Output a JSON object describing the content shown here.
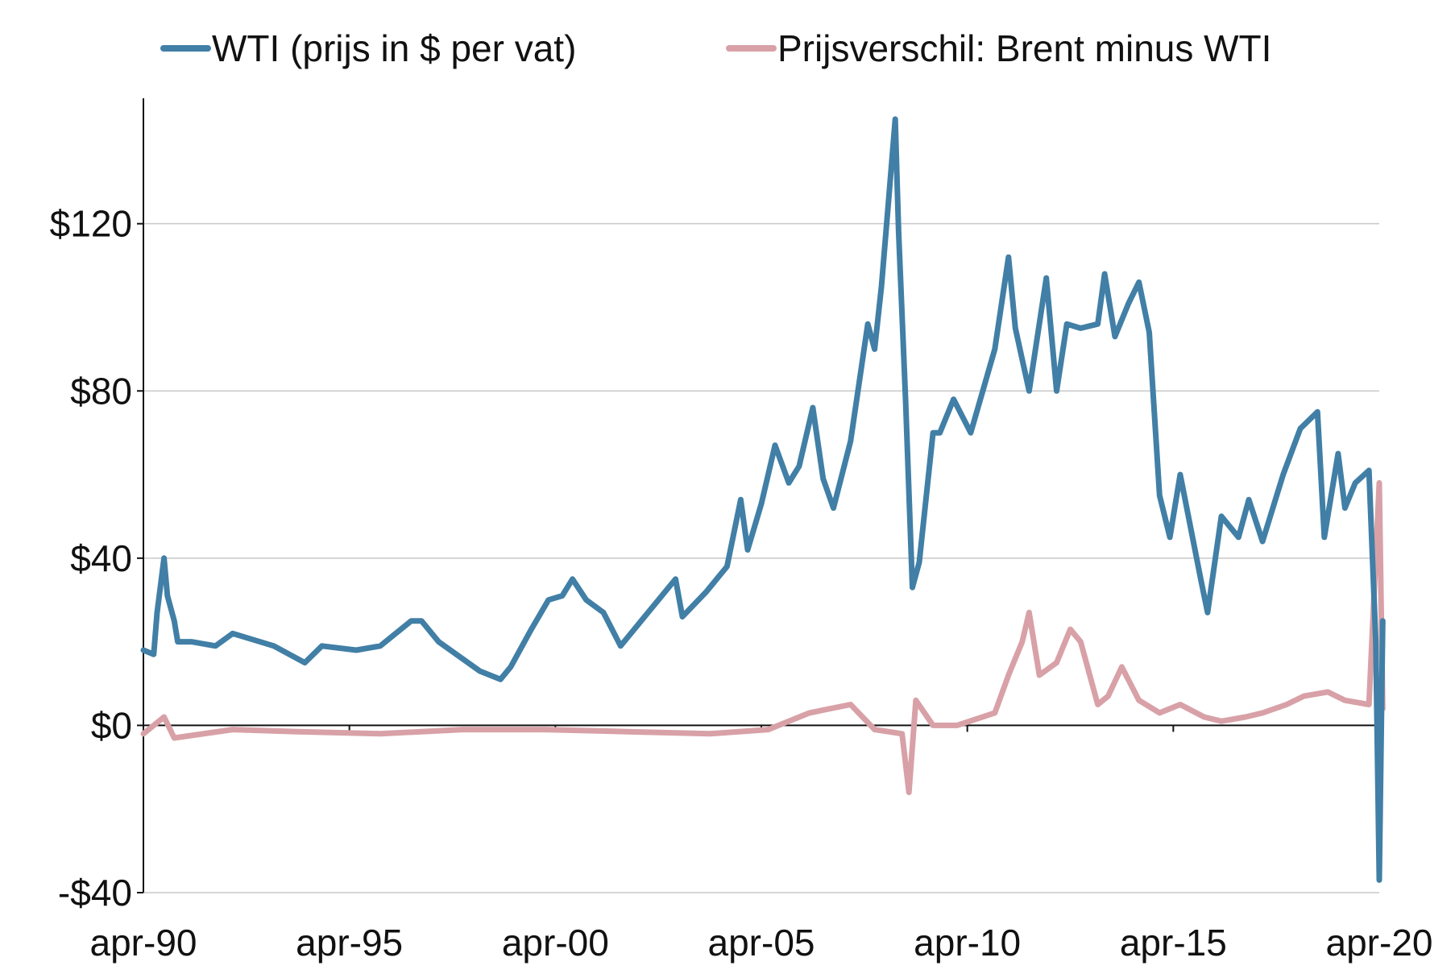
{
  "chart_data": {
    "type": "line",
    "title": "",
    "xlabel": "",
    "ylabel": "",
    "x_tick_labels": [
      "apr-90",
      "apr-95",
      "apr-00",
      "apr-05",
      "apr-10",
      "apr-15",
      "apr-20"
    ],
    "x_range": [
      "1990-04",
      "2020-04"
    ],
    "y_ticks": [
      -40,
      0,
      40,
      80,
      120
    ],
    "y_tick_labels": [
      "-$40",
      "$0",
      "$40",
      "$80",
      "$120"
    ],
    "ylim": [
      -40,
      150
    ],
    "grid": "horizontal",
    "legend_position": "top",
    "series": [
      {
        "name": "WTI (prijs in $ per vat)",
        "color": "#417fa6",
        "points": [
          [
            "1990-04",
            18
          ],
          [
            "1990-07",
            17
          ],
          [
            "1990-08",
            27
          ],
          [
            "1990-10",
            40
          ],
          [
            "1990-11",
            31
          ],
          [
            "1991-01",
            25
          ],
          [
            "1991-02",
            20
          ],
          [
            "1991-06",
            20
          ],
          [
            "1992-01",
            19
          ],
          [
            "1992-06",
            22
          ],
          [
            "1993-06",
            19
          ],
          [
            "1994-03",
            15
          ],
          [
            "1994-08",
            19
          ],
          [
            "1995-06",
            18
          ],
          [
            "1996-01",
            19
          ],
          [
            "1996-10",
            25
          ],
          [
            "1997-01",
            25
          ],
          [
            "1997-06",
            20
          ],
          [
            "1998-06",
            13
          ],
          [
            "1998-12",
            11
          ],
          [
            "1999-03",
            14
          ],
          [
            "1999-09",
            23
          ],
          [
            "2000-02",
            30
          ],
          [
            "2000-06",
            31
          ],
          [
            "2000-09",
            35
          ],
          [
            "2001-01",
            30
          ],
          [
            "2001-06",
            27
          ],
          [
            "2001-11",
            19
          ],
          [
            "2002-06",
            26
          ],
          [
            "2003-03",
            35
          ],
          [
            "2003-05",
            26
          ],
          [
            "2003-12",
            32
          ],
          [
            "2004-06",
            38
          ],
          [
            "2004-10",
            54
          ],
          [
            "2004-12",
            42
          ],
          [
            "2005-04",
            53
          ],
          [
            "2005-08",
            67
          ],
          [
            "2005-12",
            58
          ],
          [
            "2006-03",
            62
          ],
          [
            "2006-07",
            76
          ],
          [
            "2006-10",
            59
          ],
          [
            "2007-01",
            52
          ],
          [
            "2007-06",
            68
          ],
          [
            "2007-11",
            96
          ],
          [
            "2008-01",
            90
          ],
          [
            "2008-03",
            105
          ],
          [
            "2008-05",
            125
          ],
          [
            "2008-07",
            145
          ],
          [
            "2008-08",
            118
          ],
          [
            "2008-10",
            78
          ],
          [
            "2008-12",
            33
          ],
          [
            "2009-02",
            39
          ],
          [
            "2009-06",
            70
          ],
          [
            "2009-08",
            70
          ],
          [
            "2009-12",
            78
          ],
          [
            "2010-05",
            70
          ],
          [
            "2010-12",
            90
          ],
          [
            "2011-04",
            112
          ],
          [
            "2011-06",
            95
          ],
          [
            "2011-10",
            80
          ],
          [
            "2012-03",
            107
          ],
          [
            "2012-06",
            80
          ],
          [
            "2012-09",
            96
          ],
          [
            "2013-01",
            95
          ],
          [
            "2013-06",
            96
          ],
          [
            "2013-08",
            108
          ],
          [
            "2013-11",
            93
          ],
          [
            "2014-03",
            101
          ],
          [
            "2014-06",
            106
          ],
          [
            "2014-09",
            94
          ],
          [
            "2014-12",
            55
          ],
          [
            "2015-03",
            45
          ],
          [
            "2015-06",
            60
          ],
          [
            "2015-12",
            35
          ],
          [
            "2016-02",
            27
          ],
          [
            "2016-06",
            50
          ],
          [
            "2016-11",
            45
          ],
          [
            "2017-02",
            54
          ],
          [
            "2017-06",
            44
          ],
          [
            "2017-12",
            60
          ],
          [
            "2018-05",
            71
          ],
          [
            "2018-10",
            75
          ],
          [
            "2018-12",
            45
          ],
          [
            "2019-04",
            65
          ],
          [
            "2019-06",
            52
          ],
          [
            "2019-09",
            58
          ],
          [
            "2020-01",
            61
          ],
          [
            "2020-03",
            20
          ],
          [
            "2020-04",
            -37
          ],
          [
            "2020-05",
            25
          ]
        ]
      },
      {
        "name": "Prijsverschil: Brent minus WTI",
        "color": "#d8a1a7",
        "points": [
          [
            "1990-04",
            -2
          ],
          [
            "1990-10",
            2
          ],
          [
            "1991-01",
            -3
          ],
          [
            "1992-06",
            -1
          ],
          [
            "1994-01",
            -1.5
          ],
          [
            "1996-01",
            -2
          ],
          [
            "1998-01",
            -1
          ],
          [
            "2000-01",
            -1
          ],
          [
            "2002-01",
            -1.5
          ],
          [
            "2004-01",
            -2
          ],
          [
            "2005-06",
            -1
          ],
          [
            "2006-06",
            3
          ],
          [
            "2007-06",
            5
          ],
          [
            "2008-01",
            -1
          ],
          [
            "2008-09",
            -2
          ],
          [
            "2008-11",
            -16
          ],
          [
            "2009-01",
            6
          ],
          [
            "2009-06",
            0
          ],
          [
            "2010-01",
            0
          ],
          [
            "2010-12",
            3
          ],
          [
            "2011-04",
            12
          ],
          [
            "2011-08",
            20
          ],
          [
            "2011-10",
            27
          ],
          [
            "2012-01",
            12
          ],
          [
            "2012-06",
            15
          ],
          [
            "2012-10",
            23
          ],
          [
            "2013-01",
            20
          ],
          [
            "2013-06",
            5
          ],
          [
            "2013-09",
            7
          ],
          [
            "2014-01",
            14
          ],
          [
            "2014-06",
            6
          ],
          [
            "2014-12",
            3
          ],
          [
            "2015-06",
            5
          ],
          [
            "2016-01",
            2
          ],
          [
            "2016-06",
            1
          ],
          [
            "2017-01",
            2
          ],
          [
            "2017-06",
            3
          ],
          [
            "2018-01",
            5
          ],
          [
            "2018-06",
            7
          ],
          [
            "2019-01",
            8
          ],
          [
            "2019-06",
            6
          ],
          [
            "2020-01",
            5
          ],
          [
            "2020-04",
            58
          ],
          [
            "2020-05",
            4
          ]
        ]
      }
    ]
  }
}
